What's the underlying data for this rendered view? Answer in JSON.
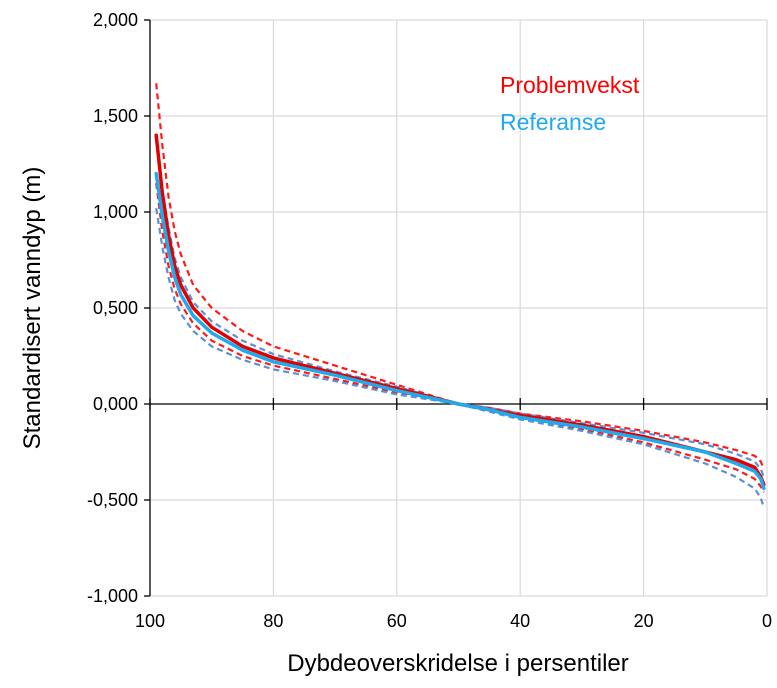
{
  "chart_data": {
    "type": "line",
    "title": "",
    "xlabel": "Dybdeoverskridelse i persentiler",
    "ylabel": "Standardisert vanndyp (m)",
    "xlim": [
      100,
      0
    ],
    "ylim": [
      -1.0,
      2.0
    ],
    "x_reversed": true,
    "grid": true,
    "legend_placement": "top-right",
    "x_ticks": [
      100,
      80,
      60,
      40,
      20,
      0
    ],
    "x_tick_labels": [
      "100",
      "80",
      "60",
      "40",
      "20",
      "0"
    ],
    "y_ticks": [
      -1.0,
      -0.5,
      0.0,
      0.5,
      1.0,
      1.5,
      2.0
    ],
    "y_tick_labels": [
      "-1,000",
      "-0,500",
      "0,000",
      "0,500",
      "1,000",
      "1,500",
      "2,000"
    ],
    "legend": [
      {
        "label": "Problemvekst",
        "color": "#ff0000"
      },
      {
        "label": "Referanse",
        "color": "#1eaaeb"
      }
    ],
    "series": [
      {
        "color": "#e00000",
        "style": "solid",
        "points": [
          [
            99,
            1.4
          ],
          [
            98,
            1.1
          ],
          [
            97,
            0.88
          ],
          [
            96,
            0.72
          ],
          [
            95,
            0.62
          ],
          [
            93,
            0.5
          ],
          [
            90,
            0.4
          ],
          [
            85,
            0.3
          ],
          [
            80,
            0.24
          ],
          [
            70,
            0.16
          ],
          [
            60,
            0.08
          ],
          [
            55,
            0.04
          ],
          [
            50,
            0.0
          ],
          [
            45,
            -0.03
          ],
          [
            40,
            -0.06
          ],
          [
            30,
            -0.11
          ],
          [
            20,
            -0.17
          ],
          [
            10,
            -0.25
          ],
          [
            5,
            -0.29
          ],
          [
            2,
            -0.33
          ],
          [
            1,
            -0.38
          ],
          [
            0.5,
            -0.42
          ]
        ]
      },
      {
        "color": "#ff1a1a",
        "style": "dashed",
        "points": [
          [
            99,
            1.67
          ],
          [
            98,
            1.35
          ],
          [
            97,
            1.08
          ],
          [
            96,
            0.9
          ],
          [
            95,
            0.78
          ],
          [
            93,
            0.62
          ],
          [
            90,
            0.5
          ],
          [
            85,
            0.38
          ],
          [
            80,
            0.3
          ],
          [
            70,
            0.2
          ],
          [
            60,
            0.1
          ],
          [
            55,
            0.05
          ],
          [
            50,
            0.0
          ],
          [
            45,
            -0.02
          ],
          [
            40,
            -0.05
          ],
          [
            30,
            -0.09
          ],
          [
            20,
            -0.14
          ],
          [
            10,
            -0.2
          ],
          [
            5,
            -0.24
          ],
          [
            2,
            -0.27
          ],
          [
            1,
            -0.3
          ],
          [
            0.5,
            -0.34
          ]
        ]
      },
      {
        "color": "#ff1a1a",
        "style": "dashed",
        "points": [
          [
            99,
            1.15
          ],
          [
            98,
            0.9
          ],
          [
            97,
            0.72
          ],
          [
            96,
            0.6
          ],
          [
            95,
            0.52
          ],
          [
            93,
            0.42
          ],
          [
            90,
            0.33
          ],
          [
            85,
            0.25
          ],
          [
            80,
            0.2
          ],
          [
            70,
            0.13
          ],
          [
            60,
            0.06
          ],
          [
            55,
            0.03
          ],
          [
            50,
            0.0
          ],
          [
            45,
            -0.03
          ],
          [
            40,
            -0.07
          ],
          [
            30,
            -0.13
          ],
          [
            20,
            -0.2
          ],
          [
            10,
            -0.29
          ],
          [
            5,
            -0.34
          ],
          [
            2,
            -0.39
          ],
          [
            1,
            -0.43
          ],
          [
            0.5,
            -0.46
          ]
        ]
      },
      {
        "color": "#1eaaeb",
        "style": "solid",
        "points": [
          [
            99,
            1.2
          ],
          [
            98,
            0.98
          ],
          [
            97,
            0.8
          ],
          [
            96,
            0.66
          ],
          [
            95,
            0.57
          ],
          [
            93,
            0.46
          ],
          [
            90,
            0.37
          ],
          [
            85,
            0.28
          ],
          [
            80,
            0.22
          ],
          [
            70,
            0.15
          ],
          [
            60,
            0.07
          ],
          [
            55,
            0.035
          ],
          [
            50,
            0.0
          ],
          [
            45,
            -0.03
          ],
          [
            40,
            -0.07
          ],
          [
            30,
            -0.12
          ],
          [
            20,
            -0.18
          ],
          [
            10,
            -0.25
          ],
          [
            5,
            -0.31
          ],
          [
            2,
            -0.35
          ],
          [
            1,
            -0.39
          ],
          [
            0.5,
            -0.44
          ]
        ]
      },
      {
        "color": "#5b8fd6",
        "style": "dashed",
        "points": [
          [
            99,
            1.38
          ],
          [
            98,
            1.12
          ],
          [
            97,
            0.92
          ],
          [
            96,
            0.76
          ],
          [
            95,
            0.66
          ],
          [
            93,
            0.53
          ],
          [
            90,
            0.43
          ],
          [
            85,
            0.33
          ],
          [
            80,
            0.26
          ],
          [
            70,
            0.17
          ],
          [
            60,
            0.09
          ],
          [
            55,
            0.045
          ],
          [
            50,
            0.0
          ],
          [
            45,
            -0.02
          ],
          [
            40,
            -0.05
          ],
          [
            30,
            -0.1
          ],
          [
            20,
            -0.15
          ],
          [
            10,
            -0.21
          ],
          [
            5,
            -0.26
          ],
          [
            2,
            -0.3
          ],
          [
            1,
            -0.34
          ],
          [
            0.5,
            -0.38
          ]
        ]
      },
      {
        "color": "#5b8fd6",
        "style": "dashed",
        "points": [
          [
            99,
            1.02
          ],
          [
            98,
            0.82
          ],
          [
            97,
            0.66
          ],
          [
            96,
            0.54
          ],
          [
            95,
            0.47
          ],
          [
            93,
            0.38
          ],
          [
            90,
            0.3
          ],
          [
            85,
            0.23
          ],
          [
            80,
            0.18
          ],
          [
            70,
            0.12
          ],
          [
            60,
            0.05
          ],
          [
            55,
            0.025
          ],
          [
            50,
            0.0
          ],
          [
            45,
            -0.04
          ],
          [
            40,
            -0.08
          ],
          [
            30,
            -0.14
          ],
          [
            20,
            -0.21
          ],
          [
            10,
            -0.31
          ],
          [
            5,
            -0.38
          ],
          [
            2,
            -0.44
          ],
          [
            1,
            -0.49
          ],
          [
            0.5,
            -0.54
          ]
        ]
      }
    ]
  }
}
